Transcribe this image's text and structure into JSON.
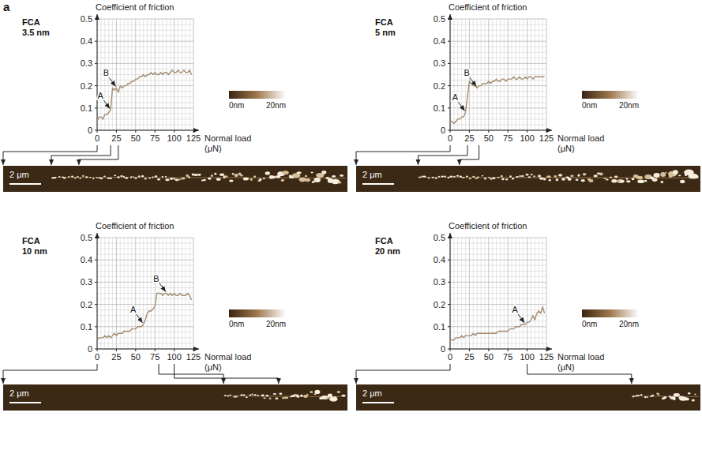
{
  "panel_label": "a",
  "chart_data": [
    {
      "type": "line",
      "title": "FCA",
      "subtitle": "3.5 nm",
      "y_label": "Coefficient of friction",
      "x_label": "Normal load (μN)",
      "color": "#a48c72",
      "grid": true,
      "xlim": [
        0,
        125
      ],
      "xticks": [
        0,
        25,
        50,
        75,
        100,
        125
      ],
      "ylim": [
        0,
        0.5
      ],
      "yticks": [
        0,
        0.1,
        0.2,
        0.3,
        0.4,
        0.5
      ],
      "x": [
        0,
        2.5,
        5,
        7.5,
        10,
        12.5,
        15,
        17.5,
        20,
        22.5,
        25,
        27.5,
        30,
        32.5,
        35,
        37.5,
        40,
        42.5,
        45,
        47.5,
        50,
        52.5,
        55,
        57.5,
        60,
        62.5,
        65,
        67.5,
        70,
        72.5,
        75,
        77.5,
        80,
        82.5,
        85,
        87.5,
        90,
        92.5,
        95,
        97.5,
        100,
        102.5,
        105,
        107.5,
        110,
        112.5,
        115,
        117.5,
        120,
        122.5
      ],
      "values": [
        0.04,
        0.06,
        0.06,
        0.05,
        0.07,
        0.07,
        0.08,
        0.09,
        0.19,
        0.18,
        0.19,
        0.17,
        0.2,
        0.19,
        0.2,
        0.2,
        0.21,
        0.21,
        0.22,
        0.22,
        0.23,
        0.23,
        0.24,
        0.24,
        0.25,
        0.24,
        0.25,
        0.25,
        0.26,
        0.25,
        0.26,
        0.25,
        0.25,
        0.26,
        0.25,
        0.26,
        0.26,
        0.25,
        0.26,
        0.27,
        0.26,
        0.26,
        0.27,
        0.26,
        0.26,
        0.27,
        0.26,
        0.26,
        0.27,
        0.25
      ],
      "annotations": [
        {
          "text": "A",
          "x": 17.5,
          "y": 0.09
        },
        {
          "text": "B",
          "x": 25,
          "y": 0.19
        }
      ],
      "colorbar": {
        "range": [
          0,
          20
        ],
        "ticks": [
          {
            "value": 0,
            "label": "0nm"
          },
          {
            "value": 20,
            "label": "20nm"
          }
        ]
      },
      "image": {
        "scale_bar": "2 μm",
        "markers": [
          0,
          17.5,
          27.5
        ]
      }
    },
    {
      "type": "line",
      "title": "FCA",
      "subtitle": "5 nm",
      "y_label": "Coefficient of friction",
      "x_label": "Normal load (μN)",
      "color": "#a48c72",
      "grid": true,
      "xlim": [
        0,
        125
      ],
      "xticks": [
        0,
        25,
        50,
        75,
        100,
        125
      ],
      "ylim": [
        0,
        0.5
      ],
      "yticks": [
        0,
        0.1,
        0.2,
        0.3,
        0.4,
        0.5
      ],
      "x": [
        0,
        2.5,
        5,
        7.5,
        10,
        12.5,
        15,
        17.5,
        20,
        22.5,
        25,
        27.5,
        30,
        32.5,
        35,
        37.5,
        40,
        42.5,
        45,
        47.5,
        50,
        52.5,
        55,
        57.5,
        60,
        62.5,
        65,
        67.5,
        70,
        72.5,
        75,
        77.5,
        80,
        82.5,
        85,
        87.5,
        90,
        92.5,
        95,
        97.5,
        100,
        102.5,
        105,
        107.5,
        110,
        112.5,
        115,
        117.5,
        120,
        122.5
      ],
      "values": [
        0.04,
        0.04,
        0.03,
        0.04,
        0.05,
        0.05,
        0.06,
        0.06,
        0.08,
        0.15,
        0.22,
        0.21,
        0.2,
        0.2,
        0.19,
        0.2,
        0.2,
        0.21,
        0.21,
        0.21,
        0.22,
        0.21,
        0.22,
        0.22,
        0.23,
        0.22,
        0.22,
        0.23,
        0.23,
        0.22,
        0.23,
        0.23,
        0.23,
        0.24,
        0.23,
        0.23,
        0.24,
        0.23,
        0.23,
        0.24,
        0.23,
        0.24,
        0.24,
        0.23,
        0.24,
        0.24,
        0.24,
        0.24,
        0.24,
        0.24
      ],
      "annotations": [
        {
          "text": "A",
          "x": 20,
          "y": 0.08
        },
        {
          "text": "B",
          "x": 35,
          "y": 0.19
        }
      ],
      "colorbar": {
        "range": [
          0,
          20
        ],
        "ticks": [
          {
            "value": 0,
            "label": "0nm"
          },
          {
            "value": 20,
            "label": "20nm"
          }
        ]
      },
      "image": {
        "scale_bar": "2 μm",
        "markers": [
          0,
          22.5,
          37.5
        ]
      }
    },
    {
      "type": "line",
      "title": "FCA",
      "subtitle": "10 nm",
      "y_label": "Coefficient of friction",
      "x_label": "Normal load (μN)",
      "color": "#a48c72",
      "grid": true,
      "xlim": [
        0,
        125
      ],
      "xticks": [
        0,
        25,
        50,
        75,
        100,
        125
      ],
      "ylim": [
        0,
        0.5
      ],
      "yticks": [
        0,
        0.1,
        0.2,
        0.3,
        0.4,
        0.5
      ],
      "x": [
        0,
        2.5,
        5,
        7.5,
        10,
        12.5,
        15,
        17.5,
        20,
        22.5,
        25,
        27.5,
        30,
        32.5,
        35,
        37.5,
        40,
        42.5,
        45,
        47.5,
        50,
        52.5,
        55,
        57.5,
        60,
        62.5,
        65,
        67.5,
        70,
        72.5,
        75,
        77.5,
        80,
        82.5,
        85,
        87.5,
        90,
        92.5,
        95,
        97.5,
        100,
        102.5,
        105,
        107.5,
        110,
        112.5,
        115,
        117.5,
        120,
        122.5
      ],
      "values": [
        0.04,
        0.05,
        0.05,
        0.05,
        0.06,
        0.05,
        0.06,
        0.05,
        0.06,
        0.07,
        0.06,
        0.07,
        0.07,
        0.07,
        0.08,
        0.08,
        0.08,
        0.08,
        0.09,
        0.09,
        0.09,
        0.1,
        0.1,
        0.1,
        0.11,
        0.13,
        0.16,
        0.17,
        0.17,
        0.18,
        0.19,
        0.25,
        0.25,
        0.25,
        0.24,
        0.25,
        0.25,
        0.24,
        0.25,
        0.24,
        0.25,
        0.24,
        0.24,
        0.25,
        0.24,
        0.24,
        0.24,
        0.25,
        0.24,
        0.22
      ],
      "annotations": [
        {
          "text": "A",
          "x": 60,
          "y": 0.11
        },
        {
          "text": "B",
          "x": 90,
          "y": 0.25
        }
      ],
      "colorbar": {
        "range": [
          0,
          20
        ],
        "ticks": [
          {
            "value": 0,
            "label": "0nm"
          },
          {
            "value": 20,
            "label": "20nm"
          }
        ]
      },
      "image": {
        "scale_bar": "2 μm",
        "markers": [
          0,
          80,
          100
        ]
      }
    },
    {
      "type": "line",
      "title": "FCA",
      "subtitle": "20 nm",
      "y_label": "Coefficient of friction",
      "x_label": "Normal load (μN)",
      "color": "#a48c72",
      "grid": true,
      "xlim": [
        0,
        125
      ],
      "xticks": [
        0,
        25,
        50,
        75,
        100,
        125
      ],
      "ylim": [
        0,
        0.5
      ],
      "yticks": [
        0,
        0.1,
        0.2,
        0.3,
        0.4,
        0.5
      ],
      "x": [
        0,
        2.5,
        5,
        7.5,
        10,
        12.5,
        15,
        17.5,
        20,
        22.5,
        25,
        27.5,
        30,
        32.5,
        35,
        37.5,
        40,
        42.5,
        45,
        47.5,
        50,
        52.5,
        55,
        57.5,
        60,
        62.5,
        65,
        67.5,
        70,
        72.5,
        75,
        77.5,
        80,
        82.5,
        85,
        87.5,
        90,
        92.5,
        95,
        97.5,
        100,
        102.5,
        105,
        107.5,
        110,
        112.5,
        115,
        117.5,
        120,
        122.5
      ],
      "values": [
        0.04,
        0.04,
        0.04,
        0.05,
        0.05,
        0.05,
        0.06,
        0.05,
        0.06,
        0.06,
        0.06,
        0.06,
        0.07,
        0.06,
        0.07,
        0.07,
        0.07,
        0.07,
        0.07,
        0.07,
        0.07,
        0.07,
        0.07,
        0.07,
        0.07,
        0.08,
        0.08,
        0.08,
        0.08,
        0.08,
        0.08,
        0.09,
        0.09,
        0.09,
        0.1,
        0.1,
        0.1,
        0.11,
        0.11,
        0.11,
        0.12,
        0.12,
        0.13,
        0.15,
        0.13,
        0.16,
        0.17,
        0.16,
        0.19,
        0.16
      ],
      "annotations": [
        {
          "text": "A",
          "x": 97.5,
          "y": 0.11
        }
      ],
      "colorbar": {
        "range": [
          0,
          20
        ],
        "ticks": [
          {
            "value": 0,
            "label": "0nm"
          },
          {
            "value": 20,
            "label": "20nm"
          }
        ]
      },
      "image": {
        "scale_bar": "2 μm",
        "markers": [
          0,
          100
        ]
      }
    }
  ]
}
